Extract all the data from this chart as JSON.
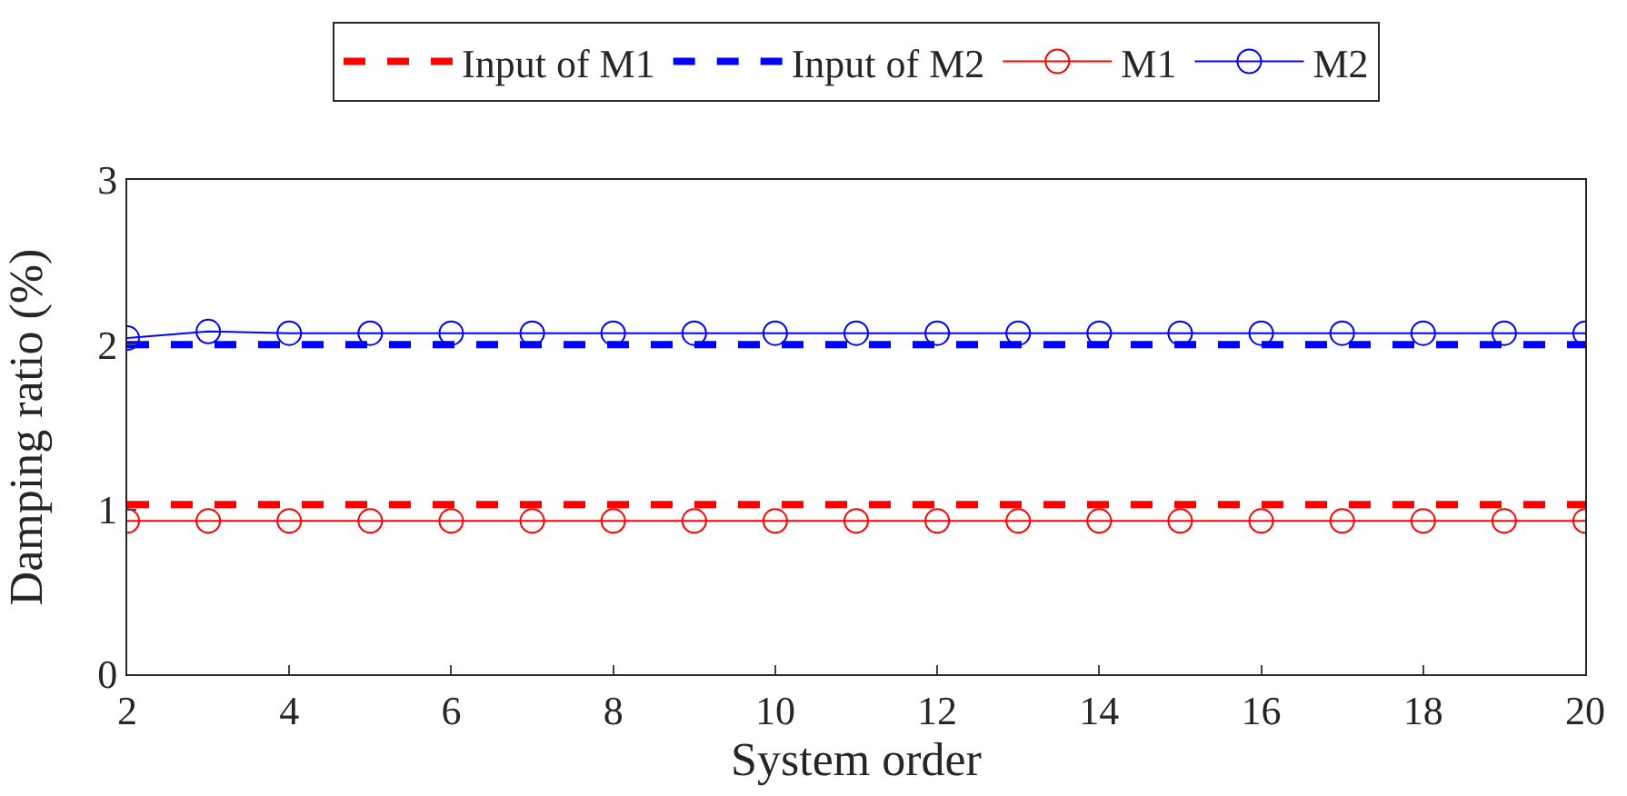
{
  "chart_data": {
    "type": "line",
    "xlabel": "System order",
    "ylabel": "Damping ratio (%)",
    "x": [
      2,
      3,
      4,
      5,
      6,
      7,
      8,
      9,
      10,
      11,
      12,
      13,
      14,
      15,
      16,
      17,
      18,
      19,
      20
    ],
    "series": [
      {
        "name": "Input of M1",
        "color": "#ff0000",
        "line_style": "dashed",
        "marker": "none",
        "values": [
          1.03,
          1.03,
          1.03,
          1.03,
          1.03,
          1.03,
          1.03,
          1.03,
          1.03,
          1.03,
          1.03,
          1.03,
          1.03,
          1.03,
          1.03,
          1.03,
          1.03,
          1.03,
          1.03
        ]
      },
      {
        "name": "Input of M2",
        "color": "#0000ff",
        "line_style": "dashed",
        "marker": "none",
        "values": [
          2,
          2,
          2,
          2,
          2,
          2,
          2,
          2,
          2,
          2,
          2,
          2,
          2,
          2,
          2,
          2,
          2,
          2,
          2
        ]
      },
      {
        "name": "M1",
        "color": "#ff0000",
        "line_style": "solid",
        "marker": "circle",
        "values": [
          0.93,
          0.93,
          0.93,
          0.93,
          0.93,
          0.93,
          0.93,
          0.93,
          0.93,
          0.93,
          0.93,
          0.93,
          0.93,
          0.93,
          0.93,
          0.93,
          0.93,
          0.93,
          0.93
        ]
      },
      {
        "name": "M2",
        "color": "#0000ff",
        "line_style": "solid",
        "marker": "circle",
        "values": [
          2.04,
          2.08,
          2.07,
          2.07,
          2.07,
          2.07,
          2.07,
          2.07,
          2.07,
          2.07,
          2.07,
          2.07,
          2.07,
          2.07,
          2.07,
          2.07,
          2.07,
          2.07,
          2.07
        ]
      }
    ],
    "xlim": [
      2,
      20
    ],
    "xticks": [
      2,
      4,
      6,
      8,
      10,
      12,
      14,
      16,
      18,
      20
    ],
    "ylim": [
      0,
      3
    ],
    "yticks": [
      0,
      1,
      2,
      3
    ],
    "grid": false,
    "legend": "top"
  }
}
